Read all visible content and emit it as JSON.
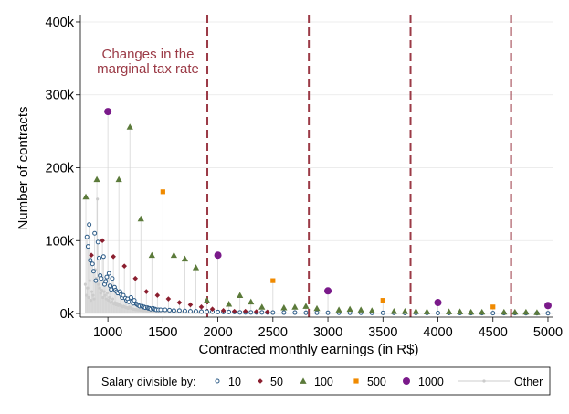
{
  "chart_data": {
    "type": "scatter",
    "title": "",
    "xlabel": "Contracted monthly earnings (in R$)",
    "ylabel": "Number of contracts",
    "xlim": [
      750,
      5050
    ],
    "ylim": [
      -5000,
      410000
    ],
    "x_ticks": [
      1000,
      1500,
      2000,
      2500,
      3000,
      3500,
      4000,
      4500,
      5000
    ],
    "x_tick_labels": [
      "1000",
      "1500",
      "2000",
      "2500",
      "3000",
      "3500",
      "4000",
      "4500",
      "5000"
    ],
    "y_ticks": [
      0,
      100000,
      200000,
      300000,
      400000
    ],
    "y_tick_labels": [
      "0k",
      "100k",
      "200k",
      "300k",
      "400k"
    ],
    "grid": true,
    "annotation": {
      "lines": [
        "Changes in the",
        "marginal tax rate"
      ],
      "color": "#9b3a46"
    },
    "tax_rate_changes": [
      1903.98,
      2826.65,
      3751.05,
      4664.68
    ],
    "legend": {
      "title": "Salary divisible by:",
      "position": "bottom",
      "entries": [
        {
          "label": "10",
          "marker": "circle-hollow",
          "color": "#2b5a86"
        },
        {
          "label": "50",
          "marker": "diamond",
          "color": "#8b1f2f"
        },
        {
          "label": "100",
          "marker": "triangle",
          "color": "#5b7a3a"
        },
        {
          "label": "500",
          "marker": "square",
          "color": "#f08a00"
        },
        {
          "label": "1000",
          "marker": "circle",
          "color": "#7a1a8a"
        },
        {
          "label": "Other",
          "marker": "line-dot",
          "color": "#cccccc"
        }
      ]
    },
    "series": [
      {
        "name": "1000",
        "color": "#7a1a8a",
        "points": [
          [
            1000,
            277000
          ],
          [
            2000,
            80000
          ],
          [
            3000,
            31000
          ],
          [
            4000,
            15000
          ],
          [
            5000,
            11000
          ]
        ]
      },
      {
        "name": "500",
        "color": "#f08a00",
        "points": [
          [
            1500,
            167000
          ],
          [
            2500,
            45000
          ],
          [
            3500,
            18000
          ],
          [
            4500,
            9000
          ]
        ]
      },
      {
        "name": "100",
        "color": "#5b7a3a",
        "points": [
          [
            800,
            160000
          ],
          [
            900,
            184000
          ],
          [
            1100,
            184000
          ],
          [
            1200,
            256000
          ],
          [
            1300,
            130000
          ],
          [
            1400,
            80000
          ],
          [
            1600,
            80000
          ],
          [
            1700,
            75000
          ],
          [
            1800,
            63000
          ],
          [
            1900,
            18000
          ],
          [
            2100,
            13000
          ],
          [
            2200,
            25000
          ],
          [
            2300,
            16000
          ],
          [
            2400,
            9000
          ],
          [
            2600,
            8000
          ],
          [
            2700,
            9000
          ],
          [
            2800,
            10000
          ],
          [
            2900,
            7000
          ],
          [
            3100,
            5000
          ],
          [
            3200,
            6000
          ],
          [
            3300,
            5000
          ],
          [
            3400,
            4000
          ],
          [
            3600,
            3000
          ],
          [
            3700,
            3000
          ],
          [
            3800,
            3000
          ],
          [
            3900,
            2500
          ],
          [
            4100,
            2500
          ],
          [
            4200,
            2500
          ],
          [
            4300,
            2000
          ],
          [
            4400,
            2000
          ],
          [
            4600,
            2000
          ],
          [
            4700,
            2000
          ],
          [
            4800,
            2000
          ],
          [
            4900,
            1500
          ]
        ]
      },
      {
        "name": "50",
        "color": "#8b1f2f",
        "points": [
          [
            850,
            80000
          ],
          [
            950,
            100000
          ],
          [
            1050,
            78000
          ],
          [
            1150,
            65000
          ],
          [
            1250,
            48000
          ],
          [
            1350,
            30000
          ],
          [
            1450,
            25000
          ],
          [
            1550,
            20000
          ],
          [
            1650,
            15000
          ],
          [
            1750,
            12000
          ],
          [
            1850,
            9000
          ],
          [
            1950,
            6000
          ],
          [
            2050,
            4000
          ],
          [
            2150,
            3000
          ],
          [
            2250,
            3000
          ],
          [
            2350,
            2500
          ],
          [
            2450,
            2000
          ]
        ]
      },
      {
        "name": "10",
        "color": "#2b5a86",
        "points": [
          [
            810,
            105000
          ],
          [
            820,
            92000
          ],
          [
            830,
            122000
          ],
          [
            840,
            73000
          ],
          [
            860,
            68000
          ],
          [
            870,
            58000
          ],
          [
            880,
            110000
          ],
          [
            890,
            45000
          ],
          [
            910,
            98000
          ],
          [
            920,
            76000
          ],
          [
            930,
            52000
          ],
          [
            940,
            48000
          ],
          [
            960,
            78000
          ],
          [
            970,
            40000
          ],
          [
            980,
            44000
          ],
          [
            990,
            50000
          ],
          [
            1010,
            55000
          ],
          [
            1020,
            38000
          ],
          [
            1030,
            33000
          ],
          [
            1040,
            48000
          ],
          [
            1060,
            36000
          ],
          [
            1070,
            32000
          ],
          [
            1080,
            30000
          ],
          [
            1090,
            28000
          ],
          [
            1110,
            30000
          ],
          [
            1120,
            26000
          ],
          [
            1130,
            22000
          ],
          [
            1140,
            25000
          ],
          [
            1160,
            21000
          ],
          [
            1170,
            18000
          ],
          [
            1180,
            20000
          ],
          [
            1190,
            16000
          ],
          [
            1210,
            22000
          ],
          [
            1220,
            16000
          ],
          [
            1230,
            14000
          ],
          [
            1240,
            18000
          ],
          [
            1260,
            13000
          ],
          [
            1270,
            12000
          ],
          [
            1280,
            11000
          ],
          [
            1290,
            10000
          ],
          [
            1310,
            10000
          ],
          [
            1320,
            9000
          ],
          [
            1330,
            9000
          ],
          [
            1340,
            8000
          ],
          [
            1360,
            8000
          ],
          [
            1370,
            7000
          ],
          [
            1380,
            7000
          ],
          [
            1390,
            6000
          ],
          [
            1410,
            7000
          ],
          [
            1420,
            6000
          ],
          [
            1430,
            6000
          ],
          [
            1440,
            5000
          ],
          [
            1460,
            5000
          ],
          [
            1480,
            5000
          ],
          [
            1520,
            5000
          ],
          [
            1560,
            4500
          ],
          [
            1600,
            4000
          ],
          [
            1650,
            4000
          ],
          [
            1700,
            3500
          ],
          [
            1750,
            3000
          ],
          [
            1800,
            3000
          ],
          [
            1850,
            2500
          ],
          [
            1900,
            2500
          ],
          [
            1950,
            2500
          ],
          [
            2000,
            2000
          ],
          [
            2050,
            2000
          ],
          [
            2100,
            2000
          ],
          [
            2150,
            2000
          ],
          [
            2200,
            1500
          ],
          [
            2250,
            1500
          ],
          [
            2300,
            1500
          ],
          [
            2350,
            1500
          ],
          [
            2400,
            1500
          ],
          [
            2450,
            1500
          ],
          [
            2500,
            1200
          ],
          [
            2600,
            1200
          ],
          [
            2700,
            1200
          ],
          [
            2800,
            1000
          ],
          [
            2900,
            1000
          ],
          [
            3000,
            1000
          ],
          [
            3100,
            1000
          ],
          [
            3200,
            900
          ],
          [
            3300,
            900
          ],
          [
            3400,
            800
          ],
          [
            3500,
            800
          ],
          [
            3600,
            800
          ],
          [
            3700,
            700
          ],
          [
            3800,
            700
          ],
          [
            3900,
            700
          ],
          [
            4000,
            600
          ],
          [
            4100,
            600
          ],
          [
            4200,
            600
          ],
          [
            4300,
            500
          ],
          [
            4400,
            500
          ],
          [
            4500,
            500
          ],
          [
            4600,
            500
          ],
          [
            4700,
            500
          ],
          [
            4800,
            400
          ],
          [
            4900,
            400
          ],
          [
            5000,
            400
          ]
        ]
      },
      {
        "name": "Other",
        "color": "#cccccc",
        "points": [
          [
            795,
            40000
          ],
          [
            805,
            25000
          ],
          [
            815,
            35000
          ],
          [
            825,
            22000
          ],
          [
            835,
            45000
          ],
          [
            845,
            18000
          ],
          [
            855,
            30000
          ],
          [
            865,
            25000
          ],
          [
            875,
            20000
          ],
          [
            885,
            60000
          ],
          [
            895,
            48000
          ],
          [
            905,
            157000
          ],
          [
            915,
            40000
          ],
          [
            925,
            35000
          ],
          [
            935,
            28000
          ],
          [
            945,
            32000
          ],
          [
            955,
            22000
          ],
          [
            965,
            30000
          ],
          [
            975,
            25000
          ],
          [
            985,
            20000
          ],
          [
            995,
            28000
          ],
          [
            1005,
            18000
          ],
          [
            1015,
            22000
          ],
          [
            1025,
            15000
          ],
          [
            1035,
            16000
          ],
          [
            1045,
            20000
          ],
          [
            1055,
            13000
          ],
          [
            1065,
            15000
          ],
          [
            1075,
            12000
          ],
          [
            1085,
            14000
          ],
          [
            1095,
            11000
          ],
          [
            1105,
            12000
          ],
          [
            1115,
            11000
          ],
          [
            1125,
            10000
          ],
          [
            1135,
            9000
          ],
          [
            1145,
            10000
          ],
          [
            1155,
            9000
          ],
          [
            1165,
            8000
          ],
          [
            1175,
            8000
          ],
          [
            1185,
            7000
          ],
          [
            1195,
            9000
          ],
          [
            1205,
            8000
          ],
          [
            1215,
            7000
          ],
          [
            1225,
            6000
          ],
          [
            1235,
            6000
          ],
          [
            1245,
            5500
          ],
          [
            1255,
            5500
          ],
          [
            1265,
            5000
          ],
          [
            1275,
            5000
          ],
          [
            1285,
            4800
          ],
          [
            1295,
            4500
          ],
          [
            1305,
            4500
          ],
          [
            1315,
            4200
          ],
          [
            1325,
            4000
          ],
          [
            1335,
            4000
          ],
          [
            1345,
            3800
          ],
          [
            1355,
            3600
          ],
          [
            1365,
            3500
          ],
          [
            1375,
            3400
          ],
          [
            1385,
            3300
          ],
          [
            1395,
            3200
          ],
          [
            1405,
            3100
          ],
          [
            1415,
            3000
          ],
          [
            1425,
            3000
          ],
          [
            1435,
            2900
          ],
          [
            1445,
            2800
          ],
          [
            1455,
            2700
          ],
          [
            1465,
            2600
          ],
          [
            1475,
            2500
          ],
          [
            1485,
            2500
          ],
          [
            1495,
            2400
          ],
          [
            1505,
            2400
          ],
          [
            1530,
            2300
          ],
          [
            1560,
            2200
          ],
          [
            1590,
            2100
          ],
          [
            1620,
            2000
          ],
          [
            1650,
            1900
          ],
          [
            1680,
            1800
          ],
          [
            1710,
            1700
          ],
          [
            1740,
            1600
          ],
          [
            1770,
            1500
          ],
          [
            1800,
            1400
          ],
          [
            1830,
            1300
          ],
          [
            1860,
            1200
          ],
          [
            1890,
            1100
          ],
          [
            1920,
            1000
          ],
          [
            1950,
            1000
          ],
          [
            2000,
            900
          ],
          [
            2050,
            900
          ],
          [
            2100,
            800
          ],
          [
            2150,
            800
          ],
          [
            2200,
            700
          ],
          [
            2300,
            700
          ],
          [
            2400,
            600
          ],
          [
            2500,
            600
          ],
          [
            2600,
            500
          ],
          [
            2700,
            500
          ],
          [
            2800,
            500
          ],
          [
            2900,
            400
          ],
          [
            3000,
            400
          ],
          [
            3200,
            400
          ],
          [
            3400,
            300
          ],
          [
            3600,
            300
          ],
          [
            3800,
            300
          ],
          [
            4000,
            200
          ],
          [
            4200,
            200
          ],
          [
            4400,
            200
          ],
          [
            4600,
            200
          ],
          [
            4800,
            200
          ],
          [
            5000,
            200
          ]
        ]
      }
    ]
  }
}
